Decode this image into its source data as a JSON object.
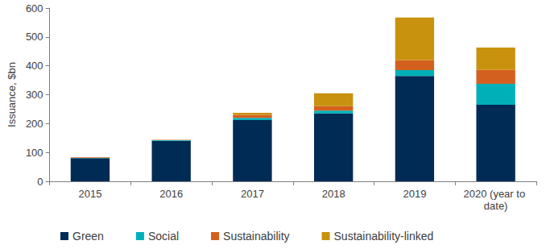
{
  "chart_data": {
    "type": "bar",
    "stacked": true,
    "grid": false,
    "legend": "bottom",
    "y_label": "Issuance, $bn",
    "categories": [
      "2015",
      "2016",
      "2017",
      "2018",
      "2019",
      "2020 (year to date)"
    ],
    "series": [
      {
        "name": "Green",
        "color": "#002b55",
        "values": [
          80,
          140,
          212,
          235,
          365,
          265
        ]
      },
      {
        "name": "Social",
        "color": "#00b0b9",
        "values": [
          1,
          2,
          8,
          10,
          20,
          73
        ]
      },
      {
        "name": "Sustainability",
        "color": "#d4601f",
        "values": [
          2,
          2,
          10,
          15,
          35,
          48
        ]
      },
      {
        "name": "Sustainability-linked",
        "color": "#c8920e",
        "values": [
          0,
          0,
          7,
          45,
          147,
          77
        ]
      }
    ],
    "ylim": [
      0,
      600
    ],
    "yticks": [
      0,
      100,
      200,
      300,
      400,
      500,
      600
    ]
  }
}
